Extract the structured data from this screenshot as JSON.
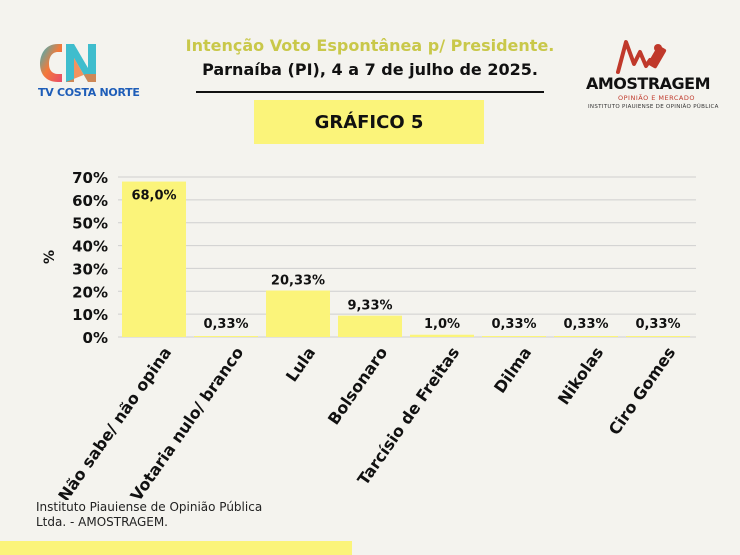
{
  "header": {
    "title": "Intenção Voto Espontânea p/ Presidente.",
    "subtitle": "Parnaíba (PI), 4 a 7 de julho de 2025.",
    "chart_tag": "GRÁFICO 5"
  },
  "logos": {
    "left_name": "TV COSTA NORTE",
    "right_name": "AMOSTRAGEM",
    "right_sub1": "OPINIÃO E MERCADO",
    "right_sub2": "INSTITUTO PIAUIENSE DE OPINIÃO PÚBLICA"
  },
  "footer": {
    "source": "Instituto Piauiense de Opinião Pública Ltda. - AMOSTRAGEM."
  },
  "colors": {
    "bar": "#fbf47a",
    "title_accent": "#c9c84a",
    "tag_background": "#fbf47a",
    "grid": "#cfcfcf"
  },
  "chart_data": {
    "type": "bar",
    "title": "Intenção Voto Espontânea p/ Presidente.",
    "ylabel": "%",
    "xlabel": "",
    "ylim": [
      0,
      70
    ],
    "yticks": [
      0,
      10,
      20,
      30,
      40,
      50,
      60,
      70
    ],
    "ytick_labels": [
      "0%",
      "10%",
      "20%",
      "30%",
      "40%",
      "50%",
      "60%",
      "70%"
    ],
    "grid": true,
    "categories": [
      "Não sabe/ não opina",
      "Votaria nulo/ branco",
      "Lula",
      "Bolsonaro",
      "Tarcísio de Freitas",
      "Dilma",
      "Nikolas",
      "Ciro Gomes"
    ],
    "values": [
      68.0,
      0.33,
      20.33,
      9.33,
      1.0,
      0.33,
      0.33,
      0.33
    ],
    "value_labels": [
      "68,0%",
      "0,33%",
      "20,33%",
      "9,33%",
      "1,0%",
      "0,33%",
      "0,33%",
      "0,33%"
    ]
  }
}
